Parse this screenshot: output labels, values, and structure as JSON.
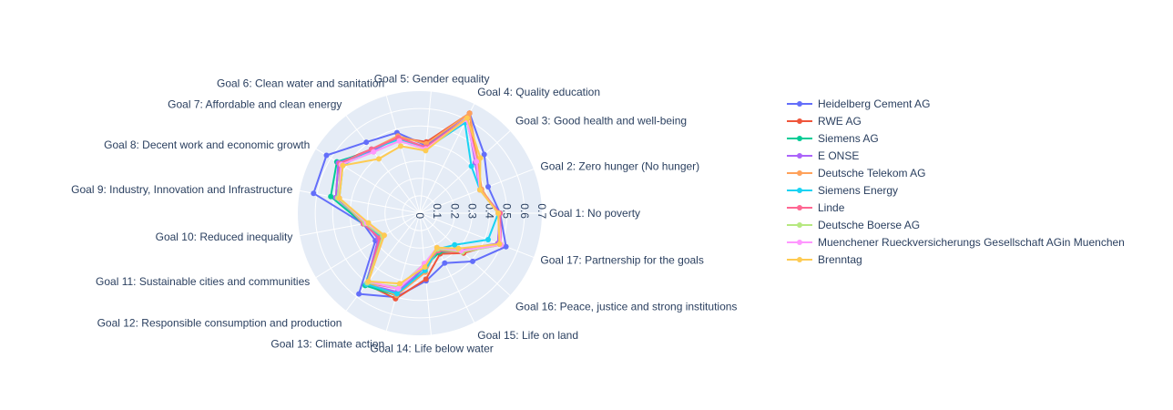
{
  "chart_data": {
    "type": "radar",
    "categories": [
      "Goal 1: No poverty",
      "Goal 2: Zero hunger (No hunger)",
      "Goal 3: Good health and well-being",
      "Goal 4: Quality education",
      "Goal 5: Gender equality",
      "Goal 6: Clean water and sanitation",
      "Goal 7: Affordable and clean energy",
      "Goal 8: Decent work and economic growth",
      "Goal 9: Industry, Innovation and Infrastructure",
      "Goal 10: Reduced inequality",
      "Goal 11: Sustainable cities and communities",
      "Goal 12: Responsible consumption and production",
      "Goal 13: Climate action",
      "Goal 14: Life below water",
      "Goal 15: Life on land",
      "Goal 16: Peace, justice and strong institutions",
      "Goal 17: Partnership for the goals"
    ],
    "radial_range": [
      0,
      0.7
    ],
    "radial_ticks": [
      "0",
      "0.1",
      "0.2",
      "0.3",
      "0.4",
      "0.5",
      "0.6",
      "0.7"
    ],
    "radial_tick_values": [
      0,
      0.1,
      0.2,
      0.3,
      0.4,
      0.5,
      0.6,
      0.7
    ],
    "legend_position": "right",
    "series": [
      {
        "name": "Heidelberg Cement AG",
        "color": "#636efa",
        "values": [
          0.46,
          0.42,
          0.5,
          0.64,
          0.39,
          0.48,
          0.51,
          0.63,
          0.62,
          0.33,
          0.3,
          0.58,
          0.5,
          0.39,
          0.32,
          0.41,
          0.53
        ]
      },
      {
        "name": "RWE AG",
        "color": "#EF553B",
        "values": [
          0.46,
          0.37,
          0.44,
          0.64,
          0.41,
          0.45,
          0.46,
          0.55,
          0.49,
          0.32,
          0.28,
          0.51,
          0.51,
          0.38,
          0.26,
          0.34,
          0.48
        ]
      },
      {
        "name": "Siemens AG",
        "color": "#00cc96",
        "values": [
          0.46,
          0.37,
          0.44,
          0.6,
          0.37,
          0.45,
          0.45,
          0.56,
          0.52,
          0.33,
          0.27,
          0.52,
          0.49,
          0.31,
          0.25,
          0.32,
          0.49
        ]
      },
      {
        "name": "E ONSE",
        "color": "#ab63fa",
        "values": [
          0.46,
          0.37,
          0.43,
          0.61,
          0.38,
          0.45,
          0.45,
          0.55,
          0.49,
          0.32,
          0.28,
          0.51,
          0.47,
          0.31,
          0.23,
          0.31,
          0.48
        ]
      },
      {
        "name": "Deutsche Telekom AG",
        "color": "#FFA15A",
        "values": [
          0.45,
          0.38,
          0.45,
          0.64,
          0.4,
          0.46,
          0.46,
          0.54,
          0.47,
          0.33,
          0.26,
          0.5,
          0.49,
          0.34,
          0.23,
          0.32,
          0.49
        ]
      },
      {
        "name": "Siemens Energy",
        "color": "#19d3f3",
        "values": [
          0.45,
          0.37,
          0.4,
          0.58,
          0.37,
          0.44,
          0.46,
          0.52,
          0.47,
          0.33,
          0.26,
          0.51,
          0.48,
          0.33,
          0.23,
          0.27,
          0.42
        ]
      },
      {
        "name": "Linde",
        "color": "#FF6692",
        "values": [
          0.46,
          0.37,
          0.44,
          0.61,
          0.38,
          0.45,
          0.46,
          0.54,
          0.47,
          0.33,
          0.27,
          0.5,
          0.45,
          0.29,
          0.24,
          0.33,
          0.5
        ]
      },
      {
        "name": "Deutsche Boerse AG",
        "color": "#B6E880",
        "values": [
          0.45,
          0.37,
          0.44,
          0.6,
          0.37,
          0.43,
          0.44,
          0.53,
          0.48,
          0.32,
          0.25,
          0.5,
          0.44,
          0.29,
          0.23,
          0.33,
          0.5
        ]
      },
      {
        "name": "Muenchener Rueckversicherungs Gesellschaft AGin Muenchen",
        "color": "#FF97FF",
        "values": [
          0.45,
          0.37,
          0.44,
          0.6,
          0.37,
          0.43,
          0.44,
          0.53,
          0.47,
          0.31,
          0.24,
          0.49,
          0.45,
          0.29,
          0.22,
          0.32,
          0.5
        ]
      },
      {
        "name": "Brenntag",
        "color": "#FECB52",
        "values": [
          0.45,
          0.37,
          0.47,
          0.61,
          0.36,
          0.4,
          0.39,
          0.52,
          0.47,
          0.3,
          0.24,
          0.49,
          0.42,
          0.31,
          0.22,
          0.3,
          0.49
        ]
      }
    ]
  }
}
